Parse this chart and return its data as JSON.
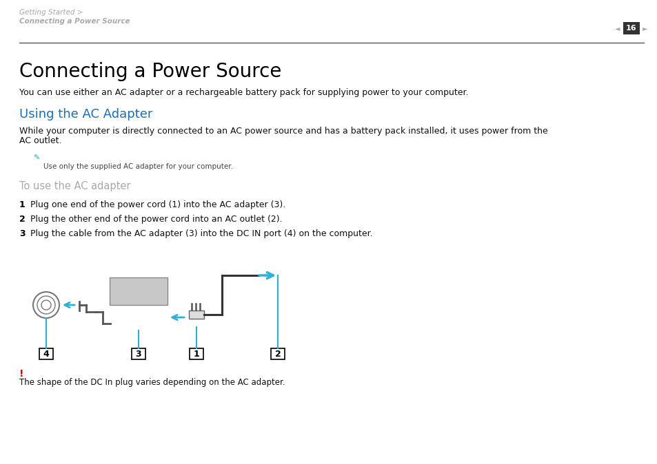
{
  "bg_color": "#ffffff",
  "header_text_line1": "Getting Started >",
  "header_text_line2": "Connecting a Power Source",
  "header_color": "#aaaaaa",
  "page_number": "16",
  "title": "Connecting a Power Source",
  "subtitle_text": "You can use either an AC adapter or a rechargeable battery pack for supplying power to your computer.",
  "section_heading": "Using the AC Adapter",
  "section_heading_color": "#1a6ebd",
  "body_text1": "While your computer is directly connected to an AC power source and has a battery pack installed, it uses power from the",
  "body_text2": "AC outlet.",
  "note_text": "Use only the supplied AC adapter for your computer.",
  "subheading": "To use the AC adapter",
  "subheading_color": "#aaaaaa",
  "step1_num": "1",
  "step1_text": "Plug one end of the power cord (1) into the AC adapter (3).",
  "step2_num": "2",
  "step2_text": "Plug the other end of the power cord into an AC outlet (2).",
  "step3_num": "3",
  "step3_text": "Plug the cable from the AC adapter (3) into the DC IN port (4) on the computer.",
  "warning_text": "The shape of the DC In plug varies depending on the AC adapter.",
  "warning_color": "#cc0000",
  "arrow_color": "#2db0d8",
  "line_color": "#2db0d8",
  "diagram_label1": "1",
  "diagram_label2": "2",
  "diagram_label3": "3",
  "diagram_label4": "4"
}
